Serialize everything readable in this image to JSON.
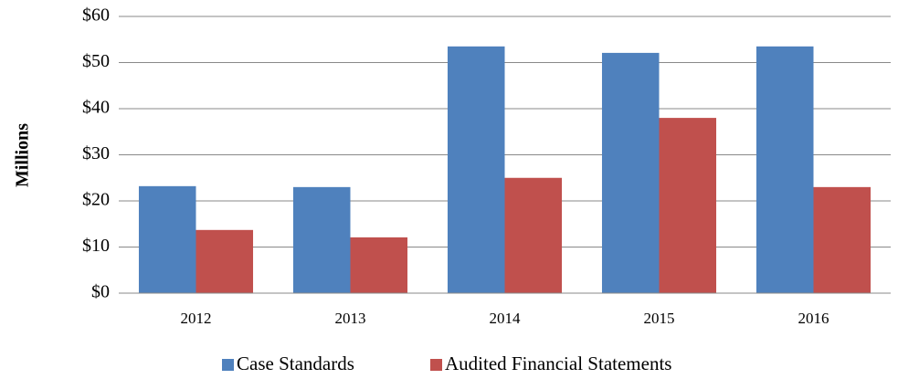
{
  "chart_data": {
    "type": "bar",
    "y_axis_label": "Millions",
    "categories": [
      "2012",
      "2013",
      "2014",
      "2015",
      "2016"
    ],
    "series": [
      {
        "name": "Case Standards",
        "color": "#4f81bd",
        "values": [
          23.2,
          23.0,
          53.5,
          52.1,
          53.5
        ]
      },
      {
        "name": "Audited Financial Statements",
        "color": "#c0504d",
        "values": [
          13.7,
          12.1,
          25.0,
          38.0,
          23.0
        ]
      }
    ],
    "ylim": [
      0,
      60
    ],
    "yticks": [
      {
        "value": 0,
        "label": "$0"
      },
      {
        "value": 10,
        "label": "$10"
      },
      {
        "value": 20,
        "label": "$20"
      },
      {
        "value": 30,
        "label": "$30"
      },
      {
        "value": 40,
        "label": "$40"
      },
      {
        "value": 50,
        "label": "$50"
      },
      {
        "value": 60,
        "label": "$60"
      }
    ],
    "grid": true,
    "legend": "bottom"
  }
}
